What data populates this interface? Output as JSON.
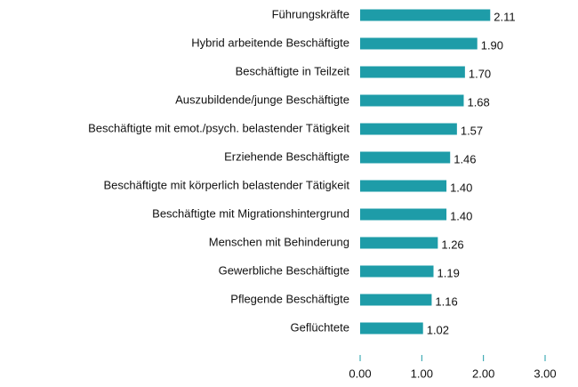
{
  "chart_data": {
    "type": "bar",
    "orientation": "horizontal",
    "categories": [
      "Führungskräfte",
      "Hybrid arbeitende Beschäftigte",
      "Beschäftigte in Teilzeit",
      "Auszubildende/junge Beschäftigte",
      "Beschäftigte mit emot./psych. belastender Tätigkeit",
      "Erziehende Beschäftigte",
      "Beschäftigte mit körperlich belastender Tätigkeit",
      "Beschäftigte mit Migrationshintergrund",
      "Menschen mit Behinderung",
      "Gewerbliche Beschäftigte",
      "Pflegende Beschäftigte",
      "Geflüchtete"
    ],
    "values": [
      2.11,
      1.9,
      1.7,
      1.68,
      1.57,
      1.46,
      1.4,
      1.4,
      1.26,
      1.19,
      1.16,
      1.02
    ],
    "value_labels": [
      "2.11",
      "1.90",
      "1.70",
      "1.68",
      "1.57",
      "1.46",
      "1.40",
      "1.40",
      "1.26",
      "1.19",
      "1.16",
      "1.02"
    ],
    "color": "#1e9ca8",
    "xlim": [
      0,
      3
    ],
    "xticks": [
      {
        "value": 0,
        "label": "0.00"
      },
      {
        "value": 1,
        "label": "1.00"
      },
      {
        "value": 2,
        "label": "2.00"
      },
      {
        "value": 3,
        "label": "3.00"
      }
    ]
  }
}
